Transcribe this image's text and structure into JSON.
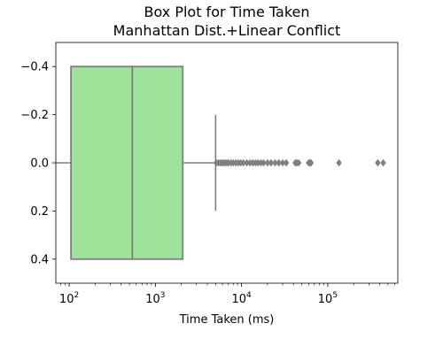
{
  "chart_data": {
    "type": "box",
    "title": "Box Plot for Time Taken",
    "subtitle": "Manhattan Dist.+Linear Conflict",
    "xlabel": "Time Taken (ms)",
    "ylabel": "",
    "x_scale": "log",
    "xlim": [
      70,
      650000
    ],
    "ylim": [
      0.5,
      -0.5
    ],
    "x_ticks": [
      {
        "value": 100,
        "base": "10",
        "exp": "2"
      },
      {
        "value": 1000,
        "base": "10",
        "exp": "3"
      },
      {
        "value": 10000,
        "base": "10",
        "exp": "4"
      },
      {
        "value": 100000,
        "base": "10",
        "exp": "5"
      }
    ],
    "y_ticks": [
      {
        "value": -0.4,
        "label": "−0.4"
      },
      {
        "value": -0.2,
        "label": "−0.2"
      },
      {
        "value": 0.0,
        "label": "0.0"
      },
      {
        "value": 0.2,
        "label": "0.2"
      },
      {
        "value": 0.4,
        "label": "0.4"
      }
    ],
    "box": {
      "whisker_low": 70,
      "q1": 105,
      "median": 540,
      "q3": 2080,
      "whisker_high": 5000,
      "center": 0.0,
      "half_width": 0.4,
      "cap_half": 0.2
    },
    "outliers": [
      5100,
      5400,
      5700,
      6000,
      6300,
      6700,
      7000,
      7500,
      8000,
      8600,
      9200,
      9800,
      10500,
      11500,
      12500,
      13500,
      14500,
      15500,
      16800,
      18000,
      20000,
      22000,
      24500,
      27000,
      30000,
      33000,
      42000,
      44000,
      46000,
      60000,
      62000,
      64000,
      135000,
      380000,
      440000
    ],
    "colors": {
      "box_fill": "#9de39a",
      "lines": "#7f7f7f",
      "outlier": "#7f7f7f",
      "frame": "#000000"
    },
    "grid": false,
    "legend": "none"
  }
}
